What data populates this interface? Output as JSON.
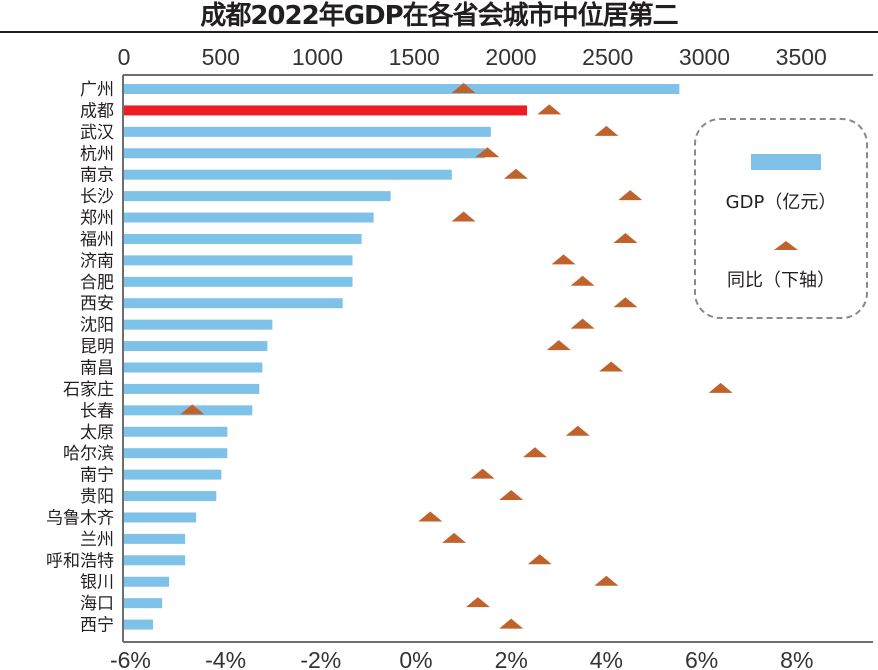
{
  "title": "成都2022年GDP在各省会城市中位居第二",
  "legend": {
    "gdp_label": "GDP（亿元）",
    "growth_label": "同比（下轴）"
  },
  "colors": {
    "bar": "#7ec2ea",
    "highlight_bar": "#ed1c24",
    "marker": "#c0622b",
    "axis": "#6d6e71"
  },
  "chart_data": {
    "type": "bar",
    "orientation": "horizontal",
    "title": "成都2022年GDP在各省会城市中位居第二",
    "categories": [
      "广州",
      "成都",
      "武汉",
      "杭州",
      "南京",
      "长沙",
      "郑州",
      "福州",
      "济南",
      "合肥",
      "西安",
      "沈阳",
      "昆明",
      "南昌",
      "石家庄",
      "长春",
      "太原",
      "哈尔滨",
      "南宁",
      "贵阳",
      "乌鲁木齐",
      "兰州",
      "呼和浩特",
      "银川",
      "海口",
      "西宁"
    ],
    "highlight_category": "成都",
    "series": [
      {
        "name": "GDP（亿元）",
        "type": "bar",
        "axis": "top",
        "values": [
          2870,
          2083,
          1896,
          1865,
          1694,
          1378,
          1290,
          1228,
          1181,
          1181,
          1130,
          767,
          741,
          715,
          699,
          663,
          534,
          534,
          503,
          477,
          373,
          316,
          316,
          233,
          197,
          150
        ]
      },
      {
        "name": "同比（下轴）",
        "type": "scatter",
        "marker": "triangle",
        "axis": "bottom",
        "unit": "%",
        "values": [
          1.0,
          2.8,
          4.0,
          1.5,
          2.1,
          4.5,
          1.0,
          4.4,
          3.1,
          3.5,
          4.4,
          3.5,
          3.0,
          4.1,
          6.4,
          -4.7,
          3.4,
          2.5,
          1.4,
          2.0,
          0.3,
          0.8,
          2.6,
          4.0,
          1.3,
          2.0
        ]
      }
    ],
    "top_axis": {
      "ticks": [
        0,
        500,
        1000,
        1500,
        2000,
        2500,
        3000,
        3500
      ],
      "tick_labels": [
        "0",
        "500",
        "1000",
        "1500",
        "2000",
        "2500",
        "3000",
        "3500"
      ],
      "range": [
        0,
        3850
      ]
    },
    "bottom_axis": {
      "ticks": [
        -6,
        -4,
        -2,
        0,
        2,
        4,
        6,
        8
      ],
      "tick_labels": [
        "-6%",
        "-4%",
        "-2%",
        "0%",
        "2%",
        "4%",
        "6%",
        "8%"
      ],
      "range": [
        -6.1,
        9.5
      ]
    },
    "grid": false,
    "legend_position": "right"
  }
}
